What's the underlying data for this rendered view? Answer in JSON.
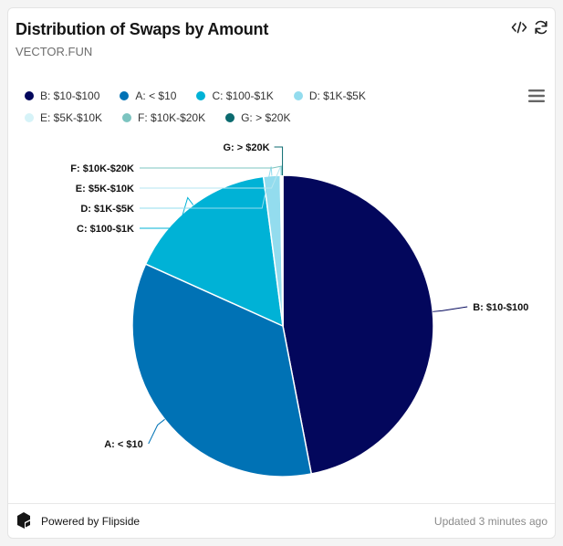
{
  "header": {
    "title": "Distribution of Swaps by Amount",
    "subtitle": "VECTOR.FUN",
    "icons": [
      "code-icon",
      "refresh-icon",
      "menu-icon"
    ]
  },
  "chart_data": {
    "type": "pie",
    "title": "Distribution of Swaps by Amount",
    "legend_position": "top-left",
    "slices": [
      {
        "label": "B: $10-$100",
        "value": 47.0,
        "color": "#03075c"
      },
      {
        "label": "A: < $10",
        "value": 34.8,
        "color": "#0072b5"
      },
      {
        "label": "C: $100-$1K",
        "value": 16.2,
        "color": "#00b2d6"
      },
      {
        "label": "D: $1K-$5K",
        "value": 1.8,
        "color": "#93dcee"
      },
      {
        "label": "E: $5K-$10K",
        "value": 0.1,
        "color": "#d6f3f8"
      },
      {
        "label": "F: $10K-$20K",
        "value": 0.05,
        "color": "#7cc4c0"
      },
      {
        "label": "G: > $20K",
        "value": 0.05,
        "color": "#0b6a6f"
      }
    ],
    "legend_order": [
      "B: $10-$100",
      "A: < $10",
      "C: $100-$1K",
      "D: $1K-$5K",
      "E: $5K-$10K",
      "F: $10K-$20K",
      "G: > $20K"
    ]
  },
  "footer": {
    "brand": "Powered by Flipside",
    "updated": "Updated 3 minutes ago"
  }
}
